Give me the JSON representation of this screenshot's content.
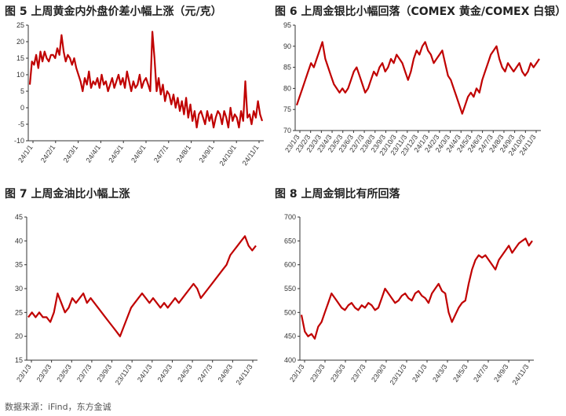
{
  "source": "数据来源：iFind，东方金诚",
  "colors": {
    "series": "#c00000",
    "axis": "#333333"
  },
  "chart_data": [
    {
      "id": "fig5",
      "type": "line",
      "title": "图 5  上周黄金内外盘价差小幅上涨（元/克）",
      "xlabel": "",
      "ylabel": "",
      "ylim": [
        -10,
        25
      ],
      "yticks": [
        25,
        20,
        15,
        10,
        5,
        0,
        -5,
        -10
      ],
      "x_tick_labels": [
        "24/1/1",
        "24/2/1",
        "24/3/1",
        "24/4/1",
        "24/5/1",
        "24/6/1",
        "24/7/1",
        "24/8/1",
        "24/9/1",
        "24/10/1",
        "24/11/1"
      ],
      "grid": false,
      "series": [
        {
          "values": [
            7,
            14,
            13,
            16,
            12,
            17,
            14,
            17,
            15,
            14,
            16,
            16,
            15,
            18,
            16,
            22,
            17,
            14,
            16,
            15,
            13,
            15,
            12,
            10,
            8,
            5,
            9,
            7,
            11,
            6,
            8,
            7,
            9,
            6,
            10,
            7,
            8,
            5,
            7,
            9,
            6,
            8,
            10,
            7,
            9,
            6,
            11,
            8,
            5,
            8,
            6,
            7,
            10,
            6,
            8,
            9,
            7,
            5,
            23,
            15,
            5,
            9,
            4,
            7,
            2,
            5,
            4,
            1,
            4,
            0,
            3,
            -1,
            2,
            -2,
            3,
            -3,
            1,
            -4,
            -1,
            -6,
            -2,
            -1,
            -3,
            -5,
            -1,
            -4,
            -2,
            -6,
            -3,
            -1,
            -2,
            -5,
            -1,
            -3,
            -6,
            0,
            -4,
            -2,
            -3,
            -6,
            -1,
            -4,
            8,
            -3,
            -2,
            -5,
            -1,
            -3,
            2,
            -2,
            -4
          ]
        }
      ]
    },
    {
      "id": "fig6",
      "type": "line",
      "title": "图 6  上周金银比小幅回落（COMEX 黄金/COMEX 白银）",
      "xlabel": "",
      "ylabel": "",
      "ylim": [
        70,
        95
      ],
      "yticks": [
        95,
        90,
        85,
        80,
        75,
        70
      ],
      "x_tick_labels": [
        "23/1/3",
        "23/2/3",
        "23/3/3",
        "23/4/3",
        "23/5/3",
        "23/6/3",
        "23/7/3",
        "23/8/3",
        "23/9/3",
        "23/10/3",
        "23/11/3",
        "23/12/3",
        "24/1/3",
        "24/2/3",
        "24/3/3",
        "24/4/3",
        "24/5/3",
        "24/6/3",
        "24/7/3",
        "24/8/3",
        "24/9/3",
        "24/10/3",
        "24/11/3"
      ],
      "grid": false,
      "series": [
        {
          "values": [
            76,
            78,
            80,
            82,
            84,
            86,
            85,
            87,
            89,
            91,
            87,
            85,
            83,
            81,
            80,
            79,
            80,
            79,
            80,
            82,
            84,
            85,
            83,
            81,
            79,
            80,
            82,
            84,
            83,
            85,
            86,
            84,
            85,
            87,
            86,
            88,
            87,
            86,
            84,
            82,
            84,
            87,
            89,
            88,
            90,
            91,
            89,
            88,
            86,
            87,
            88,
            89,
            86,
            83,
            82,
            80,
            78,
            76,
            74,
            76,
            78,
            79,
            78,
            80,
            79,
            82,
            84,
            86,
            88,
            89,
            90,
            87,
            85,
            84,
            86,
            85,
            84,
            85,
            86,
            84,
            83,
            84,
            86,
            85,
            86,
            87
          ]
        }
      ]
    },
    {
      "id": "fig7",
      "type": "line",
      "title": "图 7  上周金油比小幅上涨",
      "xlabel": "",
      "ylabel": "",
      "ylim": [
        15,
        45
      ],
      "yticks": [
        45,
        40,
        35,
        30,
        25,
        20,
        15
      ],
      "x_tick_labels": [
        "23/1/3",
        "23/3/3",
        "23/5/3",
        "23/7/3",
        "23/9/3",
        "23/11/3",
        "24/1/3",
        "24/3/3",
        "24/5/3",
        "24/7/3",
        "24/9/3",
        "24/11/3"
      ],
      "grid": false,
      "series": [
        {
          "values": [
            24,
            25,
            24,
            25,
            24,
            24,
            23,
            25,
            29,
            27,
            25,
            26,
            28,
            27,
            28,
            29,
            27,
            28,
            27,
            26,
            25,
            24,
            23,
            22,
            21,
            20,
            22,
            24,
            26,
            27,
            28,
            29,
            28,
            27,
            28,
            27,
            26,
            27,
            26,
            27,
            28,
            27,
            28,
            29,
            30,
            31,
            30,
            28,
            29,
            30,
            31,
            32,
            33,
            34,
            35,
            37,
            38,
            39,
            40,
            41,
            39,
            38,
            39
          ]
        }
      ]
    },
    {
      "id": "fig8",
      "type": "line",
      "title": "图 8  上周金铜比有所回落",
      "xlabel": "",
      "ylabel": "",
      "ylim": [
        400,
        700
      ],
      "yticks": [
        700,
        650,
        600,
        550,
        500,
        450,
        400
      ],
      "x_tick_labels": [
        "23/1/3",
        "23/3/3",
        "23/5/3",
        "23/7/3",
        "23/9/3",
        "23/11/3",
        "24/1/3",
        "24/3/3",
        "24/5/3",
        "24/7/3",
        "24/9/3",
        "24/11/3"
      ],
      "grid": false,
      "series": [
        {
          "values": [
            495,
            460,
            450,
            455,
            445,
            470,
            480,
            500,
            520,
            540,
            530,
            520,
            510,
            505,
            515,
            520,
            510,
            505,
            515,
            510,
            520,
            515,
            505,
            510,
            530,
            550,
            540,
            530,
            520,
            525,
            535,
            540,
            530,
            525,
            540,
            545,
            535,
            530,
            520,
            540,
            550,
            560,
            545,
            540,
            500,
            480,
            495,
            510,
            520,
            525,
            560,
            590,
            610,
            620,
            615,
            620,
            610,
            600,
            590,
            610,
            620,
            630,
            640,
            625,
            635,
            645,
            650,
            655,
            640,
            650
          ]
        }
      ]
    }
  ]
}
